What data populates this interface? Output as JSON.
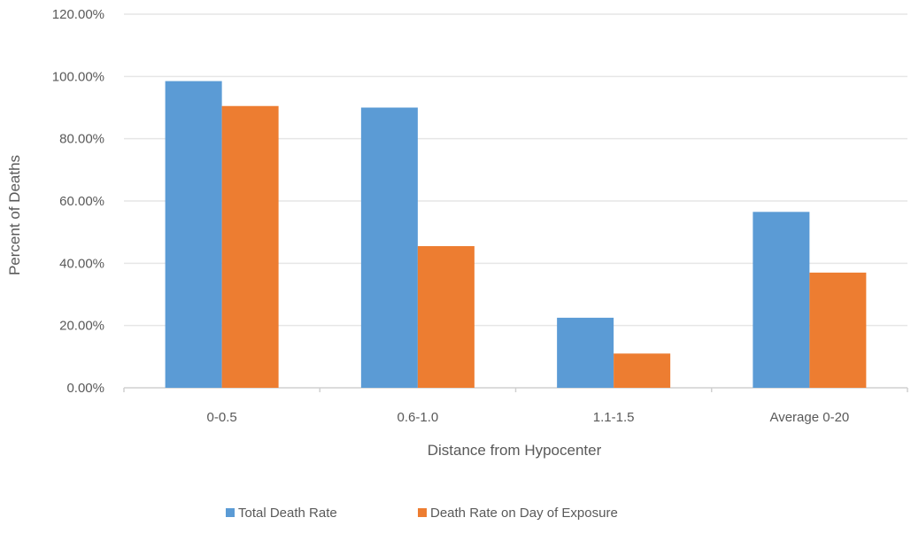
{
  "chart_data": {
    "type": "bar",
    "title": "",
    "xlabel": "Distance from Hypocenter",
    "ylabel": "Percent of Deaths",
    "categories": [
      "0-0.5",
      "0.6-1.0",
      "1.1-1.5",
      "Average 0-20"
    ],
    "series": [
      {
        "name": "Total Death Rate",
        "values": [
          98.5,
          90.0,
          22.5,
          56.5
        ],
        "color": "#5B9BD5"
      },
      {
        "name": "Death Rate on Day of Exposure",
        "values": [
          90.5,
          45.5,
          11.0,
          37.0
        ],
        "color": "#ED7D31"
      }
    ],
    "ylim": [
      0,
      120
    ],
    "yticks": [
      0,
      20,
      40,
      60,
      80,
      100,
      120
    ],
    "ytick_labels": [
      "0.00%",
      "20.00%",
      "40.00%",
      "60.00%",
      "80.00%",
      "100.00%",
      "120.00%"
    ],
    "grid": true,
    "gridline_color": "#E6E6E6",
    "legend_position": "bottom"
  }
}
